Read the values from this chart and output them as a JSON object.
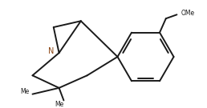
{
  "background_color": "#ffffff",
  "line_color": "#1a1a1a",
  "n_color": "#8B4513",
  "line_width": 1.4,
  "figsize": [
    2.58,
    1.35
  ],
  "dpi": 100,
  "xlim": [
    0,
    258
  ],
  "ylim": [
    0,
    135
  ]
}
